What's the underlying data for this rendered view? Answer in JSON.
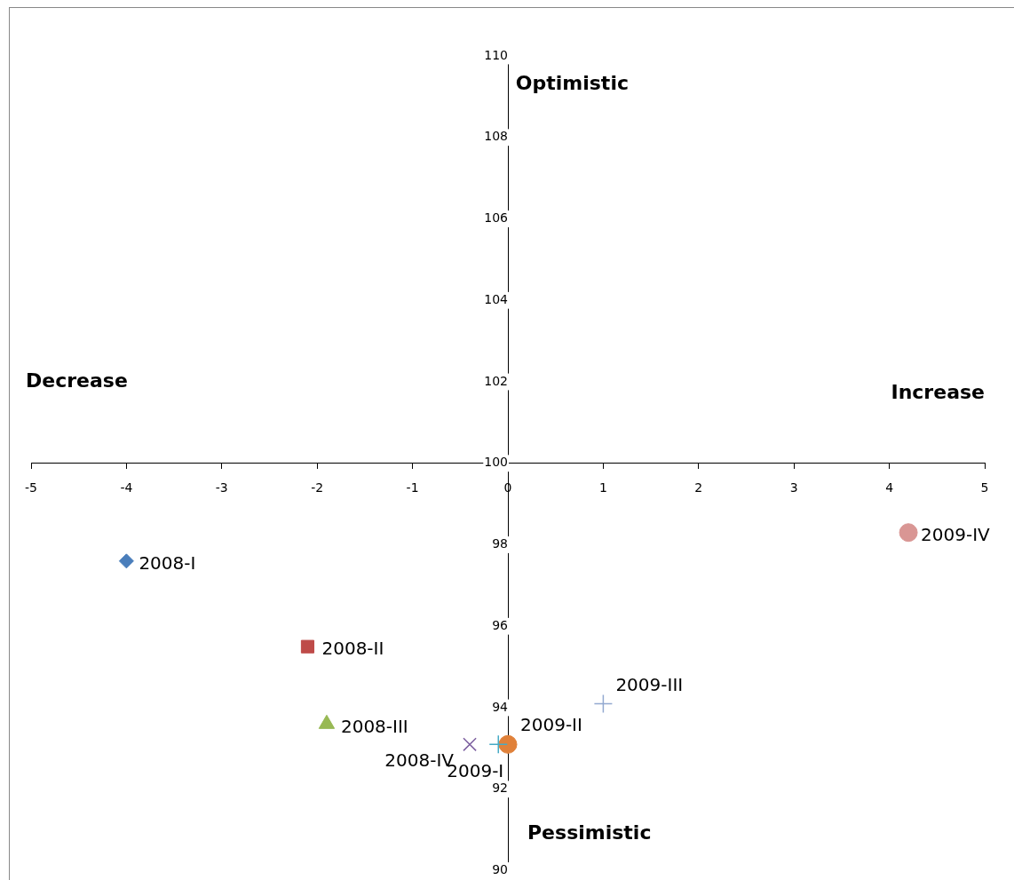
{
  "chart_data": {
    "type": "scatter",
    "xlim": [
      -5,
      5
    ],
    "ylim": [
      90,
      110
    ],
    "xticks": [
      -5,
      -4,
      -3,
      -2,
      -1,
      0,
      1,
      2,
      3,
      4,
      5
    ],
    "yticks": [
      90,
      92,
      94,
      96,
      98,
      100,
      102,
      104,
      106,
      108,
      110
    ],
    "grid": false,
    "legend": false,
    "annotations": [
      "Optimistic",
      "Pessimistic",
      "Decrease",
      "Increase"
    ],
    "series": [
      {
        "name": "2008-I",
        "color": "#4a7ebb",
        "marker": "diamond",
        "x": [
          -4.0
        ],
        "values": [
          97.6
        ]
      },
      {
        "name": "2008-II",
        "color": "#be4b48",
        "marker": "square",
        "x": [
          -2.1
        ],
        "values": [
          95.5
        ]
      },
      {
        "name": "2008-III",
        "color": "#98b954",
        "marker": "triangle",
        "x": [
          -1.9
        ],
        "values": [
          93.6
        ]
      },
      {
        "name": "2008-IV",
        "color": "#7d60a0",
        "marker": "x",
        "x": [
          -0.4
        ],
        "values": [
          93.1
        ]
      },
      {
        "name": "2009-I",
        "color": "#46aac5",
        "marker": "cross",
        "x": [
          -0.1
        ],
        "values": [
          93.1
        ]
      },
      {
        "name": "2009-II",
        "color": "#e0813a",
        "marker": "circle",
        "x": [
          0.0
        ],
        "values": [
          93.1
        ]
      },
      {
        "name": "2009-III",
        "color": "#93a9d0",
        "marker": "cross",
        "x": [
          1.0
        ],
        "values": [
          94.1
        ]
      },
      {
        "name": "2009-IV",
        "color": "#d99694",
        "marker": "circle",
        "x": [
          4.2
        ],
        "values": [
          98.3
        ]
      }
    ]
  }
}
